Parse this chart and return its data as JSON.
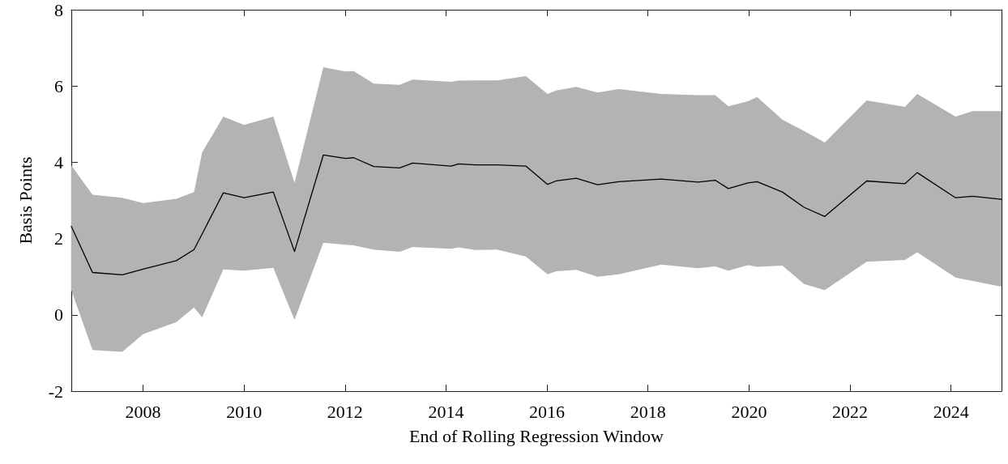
{
  "chart_data": {
    "type": "line",
    "xlabel": "End of Rolling Regression Window",
    "ylabel": "Basis Points",
    "x": [
      2006.58,
      2007.0,
      2007.59,
      2008.0,
      2008.66,
      2009.01,
      2009.17,
      2009.59,
      2010.0,
      2010.58,
      2011.0,
      2011.57,
      2012.01,
      2012.17,
      2012.57,
      2013.08,
      2013.34,
      2014.1,
      2014.25,
      2014.58,
      2015.01,
      2015.58,
      2016.01,
      2016.18,
      2016.58,
      2017.0,
      2017.42,
      2018.26,
      2018.99,
      2019.33,
      2019.59,
      2019.98,
      2020.16,
      2020.66,
      2021.09,
      2021.5,
      2022.33,
      2023.09,
      2023.33,
      2024.09,
      2024.43,
      2025.0
    ],
    "series": [
      {
        "color": "#000000",
        "values": [
          2.32,
          1.11,
          1.05,
          1.2,
          1.42,
          1.71,
          2.12,
          3.2,
          3.07,
          3.22,
          1.66,
          4.19,
          4.1,
          4.12,
          3.89,
          3.85,
          3.98,
          3.9,
          3.96,
          3.93,
          3.93,
          3.9,
          3.42,
          3.51,
          3.58,
          3.41,
          3.49,
          3.56,
          3.48,
          3.53,
          3.31,
          3.46,
          3.49,
          3.22,
          2.82,
          2.58,
          3.51,
          3.44,
          3.73,
          3.07,
          3.11,
          3.03
        ],
        "upper": [
          3.92,
          3.15,
          3.07,
          2.93,
          3.04,
          3.22,
          4.26,
          5.2,
          4.98,
          5.2,
          3.46,
          6.49,
          6.38,
          6.39,
          6.06,
          6.03,
          6.17,
          6.11,
          6.14,
          6.15,
          6.15,
          6.26,
          5.79,
          5.88,
          5.98,
          5.83,
          5.92,
          5.79,
          5.76,
          5.76,
          5.47,
          5.6,
          5.71,
          5.12,
          4.82,
          4.52,
          5.62,
          5.45,
          5.79,
          5.2,
          5.34,
          5.34
        ],
        "lower": [
          0.65,
          -0.92,
          -0.97,
          -0.51,
          -0.19,
          0.19,
          -0.07,
          1.19,
          1.16,
          1.23,
          -0.13,
          1.89,
          1.84,
          1.82,
          1.71,
          1.65,
          1.78,
          1.73,
          1.77,
          1.7,
          1.71,
          1.53,
          1.06,
          1.14,
          1.18,
          1.0,
          1.06,
          1.32,
          1.22,
          1.27,
          1.16,
          1.3,
          1.26,
          1.29,
          0.81,
          0.65,
          1.39,
          1.44,
          1.64,
          0.98,
          0.89,
          0.74
        ]
      }
    ],
    "xlim": [
      2006.58,
      2025.0
    ],
    "xticks": [
      2008,
      2010,
      2012,
      2014,
      2016,
      2018,
      2020,
      2022,
      2024
    ],
    "ylim": [
      -2,
      8
    ],
    "yticks": [
      -2,
      0,
      2,
      4,
      6,
      8
    ],
    "marker": "none",
    "line_style": "solid"
  }
}
